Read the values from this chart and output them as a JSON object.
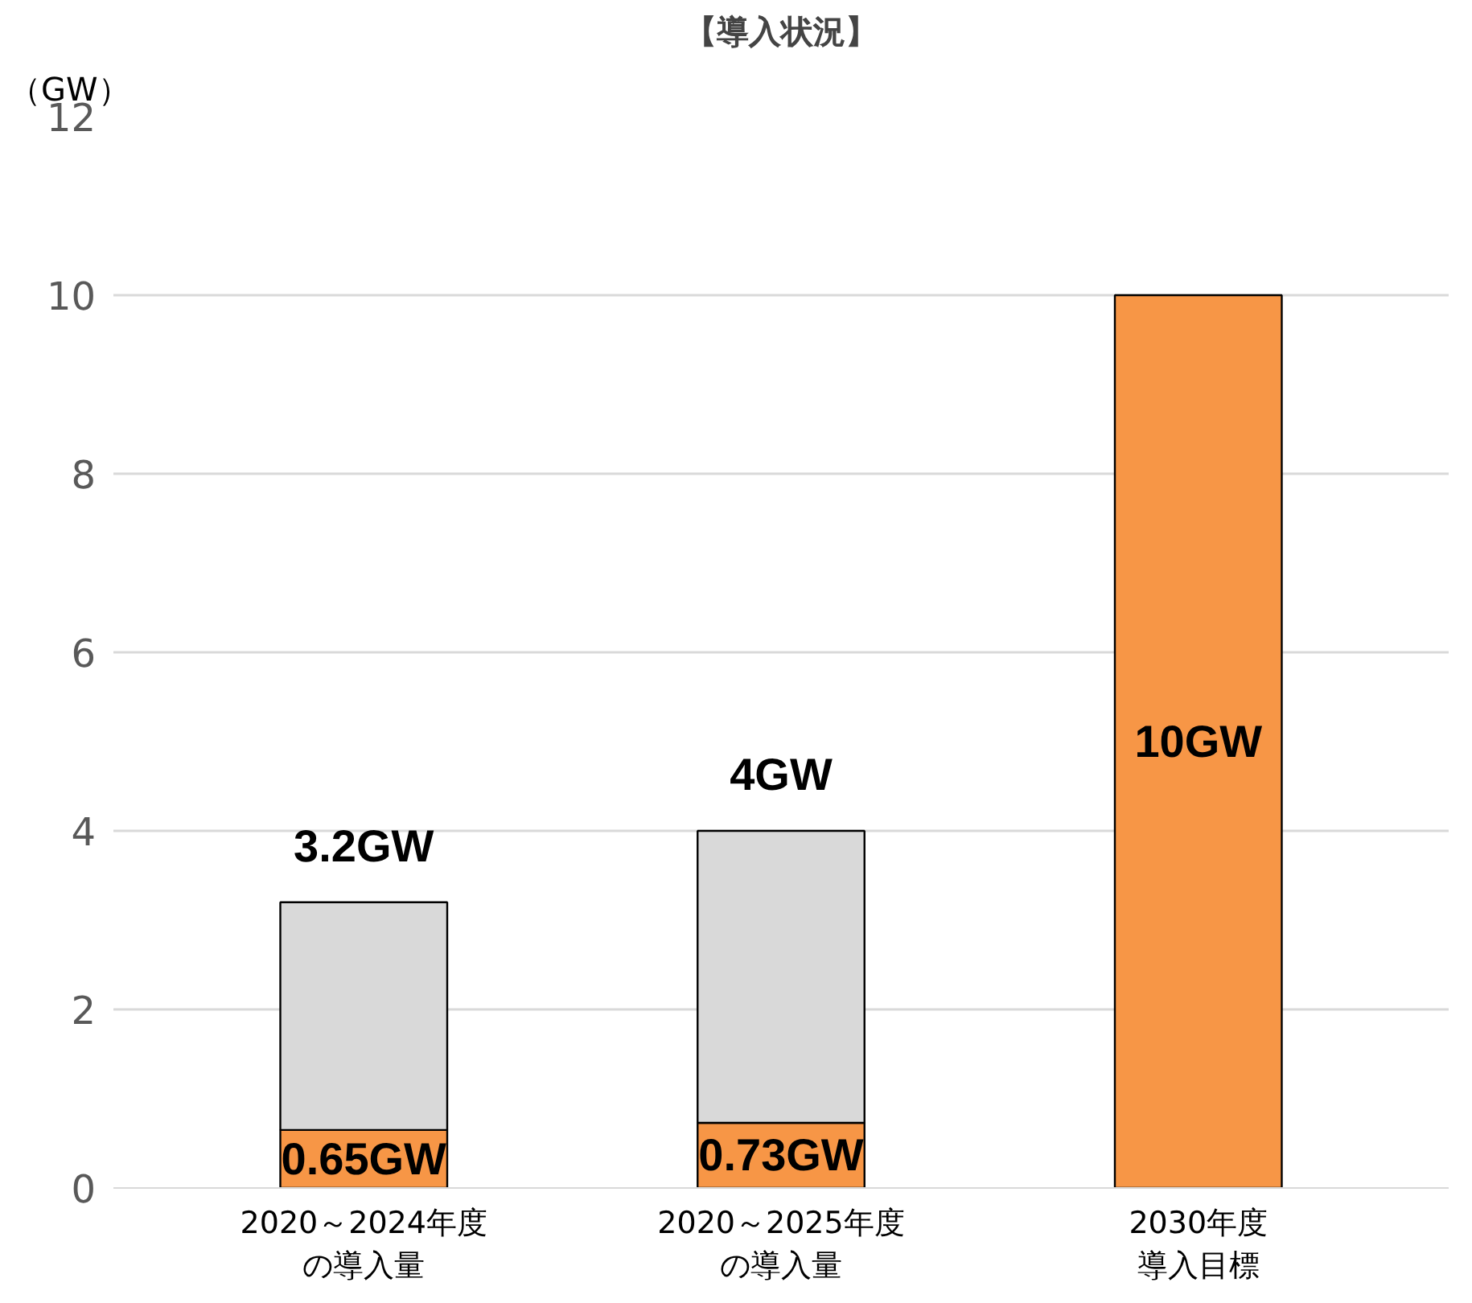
{
  "chart_data": {
    "type": "bar",
    "title": "【導入状況】",
    "ylabel": "（GW）",
    "categories": [
      "2020～2024年度の導入量",
      "2020～2025年度の導入量",
      "2030年度導入目標"
    ],
    "stacked": true,
    "series": [
      {
        "color": "#f79646",
        "values": [
          0.65,
          0.73,
          10
        ],
        "value_labels": [
          "0.65GW",
          "0.73GW",
          "10GW"
        ]
      },
      {
        "color": "#d9d9d9",
        "values": [
          2.55,
          3.27,
          null
        ]
      }
    ],
    "totals": [
      "3.2GW",
      "4GW",
      null
    ],
    "ylim": [
      0,
      12
    ],
    "yticks": [
      0,
      2,
      4,
      6,
      8,
      10,
      12
    ],
    "grid": "y"
  }
}
